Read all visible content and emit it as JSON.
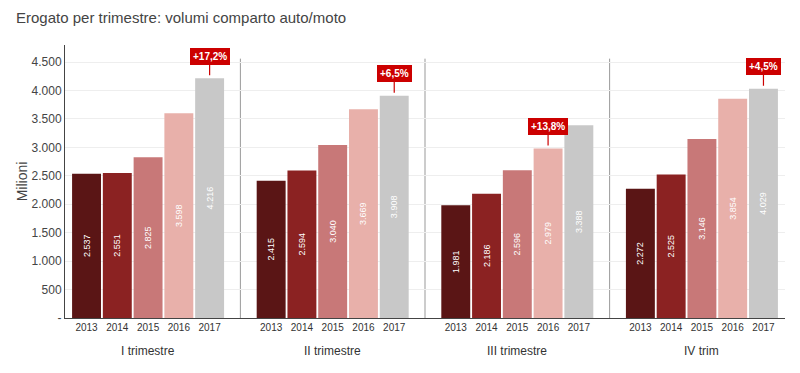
{
  "chart_data": {
    "type": "bar",
    "title": "Erogato per trimestre: volumi comparto auto/moto",
    "ylabel": "Milioni",
    "categories": [
      "I trimestre",
      "II trimestre",
      "III trimestre",
      "IV trim"
    ],
    "series": [
      {
        "name": "2013",
        "color": "#5a1515",
        "values": [
          2537,
          2415,
          1981,
          2272
        ],
        "value_labels": [
          "2.537",
          "2.415",
          "1.981",
          "2.272"
        ]
      },
      {
        "name": "2014",
        "color": "#8b2222",
        "values": [
          2551,
          2594,
          2186,
          2525
        ],
        "value_labels": [
          "2.551",
          "2.594",
          "2.186",
          "2.525"
        ]
      },
      {
        "name": "2015",
        "color": "#c87878",
        "values": [
          2825,
          3040,
          2596,
          3146
        ],
        "value_labels": [
          "2.825",
          "3.040",
          "2.596",
          "3.146"
        ]
      },
      {
        "name": "2016",
        "color": "#e8b0aa",
        "values": [
          3598,
          3669,
          2979,
          3854
        ],
        "value_labels": [
          "3.598",
          "3.669",
          "2.979",
          "3.854"
        ]
      },
      {
        "name": "2017",
        "color": "#c8c8c8",
        "values": [
          4216,
          3908,
          3388,
          4029
        ],
        "value_labels": [
          "4.216",
          "3.908",
          "3.388",
          "4.029"
        ]
      }
    ],
    "data_labels": true,
    "ylim": [
      0,
      4800
    ],
    "yticks": [
      {
        "value": 0,
        "label": "-"
      },
      500,
      {
        "value": 1000,
        "label": "1.000"
      },
      {
        "value": 1500,
        "label": "1.500"
      },
      {
        "value": 2000,
        "label": "2.000"
      },
      {
        "value": 2500,
        "label": "2.500"
      },
      {
        "value": 3000,
        "label": "3.000"
      },
      {
        "value": 3500,
        "label": "3.500"
      },
      {
        "value": 4000,
        "label": "4.000"
      },
      {
        "value": 4500,
        "label": "4.500"
      }
    ],
    "grid": true,
    "annotations": [
      {
        "text": "+17,2%",
        "category": "I trimestre",
        "series": "2017",
        "color": "#cc0000"
      },
      {
        "text": "+6,5%",
        "category": "II trimestre",
        "series": "2017",
        "color": "#cc0000"
      },
      {
        "text": "+13,8%",
        "category": "III trimestre",
        "series": "2016",
        "color": "#cc0000"
      },
      {
        "text": "+4,5%",
        "category": "IV trim",
        "series": "2017",
        "color": "#cc0000"
      }
    ]
  }
}
